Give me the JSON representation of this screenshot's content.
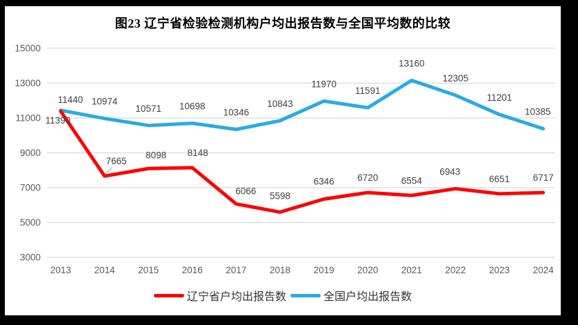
{
  "title": "图23 辽宁省检验检测机构户均出报告数与全国平均数的比较",
  "chart_data": {
    "type": "line",
    "title": "图23 辽宁省检验检测机构户均出报告数与全国平均数的比较",
    "categories": [
      "2013",
      "2014",
      "2015",
      "2016",
      "2017",
      "2018",
      "2019",
      "2020",
      "2021",
      "2022",
      "2023",
      "2024"
    ],
    "series": [
      {
        "name": "辽宁省户均出报告数",
        "color": "#FF0000",
        "values": [
          11390,
          7665,
          8098,
          8148,
          6066,
          5598,
          6346,
          6720,
          6554,
          6943,
          6651,
          6717
        ]
      },
      {
        "name": "全国户均出报告数",
        "color": "#2BAAE2",
        "values": [
          11440,
          10974,
          10571,
          10698,
          10346,
          10843,
          11970,
          11591,
          13160,
          12305,
          11201,
          10385
        ]
      }
    ],
    "ylim": [
      3000,
      15000
    ],
    "yticks": [
      15000,
      13000,
      11000,
      9000,
      7000,
      5000,
      3000
    ],
    "xlabel": "",
    "ylabel": "",
    "grid": "horizontal",
    "data_labels": true,
    "legend_position": "bottom",
    "colors": {
      "gridline": "#D9D9D9",
      "axis_text": "#595959",
      "data_label_text": "#404040",
      "leader_line": "#A6A6A6"
    },
    "label_layout": {
      "default_dy": {
        "0": -17,
        "1": -20
      },
      "overrides": {
        "0-0": {
          "dx": -4,
          "dy": 18
        },
        "0-1": {
          "dx": 17,
          "dy": -17,
          "leader": true
        },
        "0-2": {
          "dx": 11,
          "dy": -15
        },
        "0-3": {
          "dx": 8,
          "dy": -17
        },
        "0-4": {
          "dx": 14,
          "dy": -14
        },
        "0-5": {
          "dy": -19
        },
        "0-6": {
          "dy": -21
        },
        "0-9": {
          "dx": -8,
          "dy": -20
        },
        "1-0": {
          "dx": 14,
          "dy": -11
        },
        "1-11": {
          "dx": -8
        }
      }
    }
  }
}
